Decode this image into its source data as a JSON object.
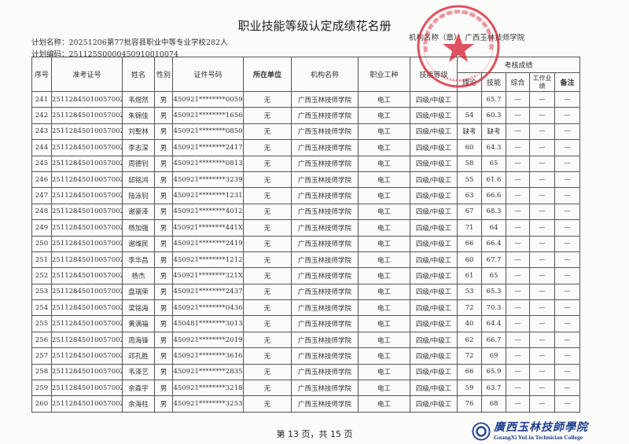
{
  "document": {
    "title": "职业技能等级认定成绩花名册",
    "plan_name": "计划名称：20251206第77批容县职业中等专业学校282人",
    "plan_code": "计划编码：251125S0000450910010074",
    "institution": "机构名称（章）：广西玉林技师学院",
    "footer": "第 13 页，共 15 页"
  },
  "table": {
    "headers": {
      "seq": "序号",
      "exam_id": "准考证号",
      "name": "姓名",
      "gender": "性别",
      "id_number": "证件号码",
      "unit": "所在单位",
      "org": "机构名称",
      "occupation": "职业工种",
      "level": "技能等级",
      "scores": "考核成绩",
      "theory": "理论",
      "skill": "技能",
      "overall": "综合",
      "work": "工作业绩",
      "remark": "备注"
    },
    "rows": [
      {
        "seq": "241",
        "exam_id": "2511284501005700241",
        "name": "韦煜然",
        "gender": "男",
        "id_number": "450921********0059",
        "unit": "无",
        "org": "广西玉林技师学院",
        "occupation": "电工",
        "level": "四级/中级工",
        "theory": "",
        "skill": "65.7",
        "overall": "—",
        "work": "—",
        "remark": "—"
      },
      {
        "seq": "242",
        "exam_id": "2511284501005700242",
        "name": "朱锦佳",
        "gender": "男",
        "id_number": "450921********1656",
        "unit": "无",
        "org": "广西玉林技师学院",
        "occupation": "电工",
        "level": "四级/中级工",
        "theory": "54",
        "skill": "60.3",
        "overall": "—",
        "work": "—",
        "remark": "—"
      },
      {
        "seq": "243",
        "exam_id": "2511284501005700243",
        "name": "刘聖林",
        "gender": "男",
        "id_number": "450921********0850",
        "unit": "无",
        "org": "广西玉林技师学院",
        "occupation": "电工",
        "level": "四级/中级工",
        "theory": "缺考",
        "skill": "缺考",
        "overall": "—",
        "work": "—",
        "remark": "—"
      },
      {
        "seq": "244",
        "exam_id": "2511284501005700244",
        "name": "李志深",
        "gender": "男",
        "id_number": "450921********2417",
        "unit": "无",
        "org": "广西玉林技师学院",
        "occupation": "电工",
        "level": "四级/中级工",
        "theory": "60",
        "skill": "64.3",
        "overall": "—",
        "work": "—",
        "remark": "—"
      },
      {
        "seq": "245",
        "exam_id": "2511284501005700245",
        "name": "周德钊",
        "gender": "男",
        "id_number": "450921********0813",
        "unit": "无",
        "org": "广西玉林技师学院",
        "occupation": "电工",
        "level": "四级/中级工",
        "theory": "58",
        "skill": "65",
        "overall": "—",
        "work": "—",
        "remark": "—"
      },
      {
        "seq": "246",
        "exam_id": "2511284501005700246",
        "name": "邱铭鸿",
        "gender": "男",
        "id_number": "450921********3239",
        "unit": "无",
        "org": "广西玉林技师学院",
        "occupation": "电工",
        "level": "四级/中级工",
        "theory": "55",
        "skill": "61.6",
        "overall": "—",
        "work": "—",
        "remark": "—"
      },
      {
        "seq": "247",
        "exam_id": "2511284501005700247",
        "name": "陆泳钊",
        "gender": "男",
        "id_number": "450921********1231",
        "unit": "无",
        "org": "广西玉林技师学院",
        "occupation": "电工",
        "level": "四级/中级工",
        "theory": "63",
        "skill": "66.6",
        "overall": "—",
        "work": "—",
        "remark": "—"
      },
      {
        "seq": "248",
        "exam_id": "2511284501005700248",
        "name": "谢豪泽",
        "gender": "男",
        "id_number": "450921********4012",
        "unit": "无",
        "org": "广西玉林技师学院",
        "occupation": "电工",
        "level": "四级/中级工",
        "theory": "67",
        "skill": "68.3",
        "overall": "—",
        "work": "—",
        "remark": "—"
      },
      {
        "seq": "249",
        "exam_id": "2511284501005700249",
        "name": "杨加强",
        "gender": "男",
        "id_number": "450921********441X",
        "unit": "无",
        "org": "广西玉林技师学院",
        "occupation": "电工",
        "level": "四级/中级工",
        "theory": "71",
        "skill": "64",
        "overall": "—",
        "work": "—",
        "remark": "—"
      },
      {
        "seq": "250",
        "exam_id": "2511284501005700250",
        "name": "谢维民",
        "gender": "男",
        "id_number": "450921********2419",
        "unit": "无",
        "org": "广西玉林技师学院",
        "occupation": "电工",
        "level": "四级/中级工",
        "theory": "66",
        "skill": "66.4",
        "overall": "—",
        "work": "—",
        "remark": "—"
      },
      {
        "seq": "251",
        "exam_id": "2511284501005700251",
        "name": "李华昌",
        "gender": "男",
        "id_number": "450921********1212",
        "unit": "无",
        "org": "广西玉林技师学院",
        "occupation": "电工",
        "level": "四级/中级工",
        "theory": "60",
        "skill": "67.7",
        "overall": "—",
        "work": "—",
        "remark": "—"
      },
      {
        "seq": "252",
        "exam_id": "2511284501005700252",
        "name": "杨杰",
        "gender": "男",
        "id_number": "450921********321X",
        "unit": "无",
        "org": "广西玉林技师学院",
        "occupation": "电工",
        "level": "四级/中级工",
        "theory": "61",
        "skill": "65",
        "overall": "—",
        "work": "—",
        "remark": "—"
      },
      {
        "seq": "253",
        "exam_id": "2511284501005700253",
        "name": "盘瑞荣",
        "gender": "男",
        "id_number": "450921********2437",
        "unit": "无",
        "org": "广西玉林技师学院",
        "occupation": "电工",
        "level": "四级/中级工",
        "theory": "53",
        "skill": "65.3",
        "overall": "—",
        "work": "—",
        "remark": "—"
      },
      {
        "seq": "254",
        "exam_id": "2511284501005700254",
        "name": "梁铭海",
        "gender": "男",
        "id_number": "450921********0436",
        "unit": "无",
        "org": "广西玉林技师学院",
        "occupation": "电工",
        "level": "四级/中级工",
        "theory": "72",
        "skill": "70.3",
        "overall": "—",
        "work": "—",
        "remark": "—"
      },
      {
        "seq": "255",
        "exam_id": "2511284501005700255",
        "name": "黄满福",
        "gender": "男",
        "id_number": "450481********3013",
        "unit": "无",
        "org": "广西玉林技师学院",
        "occupation": "电工",
        "level": "四级/中级工",
        "theory": "40",
        "skill": "64.4",
        "overall": "—",
        "work": "—",
        "remark": "—"
      },
      {
        "seq": "256",
        "exam_id": "2511284501005700256",
        "name": "周海锋",
        "gender": "男",
        "id_number": "450921********2019",
        "unit": "无",
        "org": "广西玉林技师学院",
        "occupation": "电工",
        "level": "四级/中级工",
        "theory": "62",
        "skill": "66.7",
        "overall": "—",
        "work": "—",
        "remark": "—"
      },
      {
        "seq": "257",
        "exam_id": "2511284501005700257",
        "name": "邓孔胜",
        "gender": "男",
        "id_number": "450921********3616",
        "unit": "无",
        "org": "广西玉林技师学院",
        "occupation": "电工",
        "level": "四级/中级工",
        "theory": "72",
        "skill": "69",
        "overall": "—",
        "work": "—",
        "remark": "—"
      },
      {
        "seq": "258",
        "exam_id": "2511284501005700258",
        "name": "韦泽艺",
        "gender": "男",
        "id_number": "450921********2835",
        "unit": "无",
        "org": "广西玉林技师学院",
        "occupation": "电工",
        "level": "四级/中级工",
        "theory": "66",
        "skill": "65.9",
        "overall": "—",
        "work": "—",
        "remark": "—"
      },
      {
        "seq": "259",
        "exam_id": "2511284501005700259",
        "name": "余森宇",
        "gender": "男",
        "id_number": "450921********3218",
        "unit": "无",
        "org": "广西玉林技师学院",
        "occupation": "电工",
        "level": "四级/中级工",
        "theory": "59",
        "skill": "63.7",
        "overall": "—",
        "work": "—",
        "remark": "—"
      },
      {
        "seq": "260",
        "exam_id": "2511284501005700260",
        "name": "余海柱",
        "gender": "男",
        "id_number": "450921********3253",
        "unit": "无",
        "org": "广西玉林技师学院",
        "occupation": "电工",
        "level": "四级/中级工",
        "theory": "76",
        "skill": "68",
        "overall": "—",
        "work": "—",
        "remark": "—"
      }
    ]
  },
  "stamp": {
    "text": "广西玉林技师学院",
    "color": "#d8283a",
    "number": "4509021"
  },
  "logo": {
    "cn": "廣西玉林技師學院",
    "en": "GuangXi YuLin Technician College",
    "color": "#1d3f8f"
  }
}
